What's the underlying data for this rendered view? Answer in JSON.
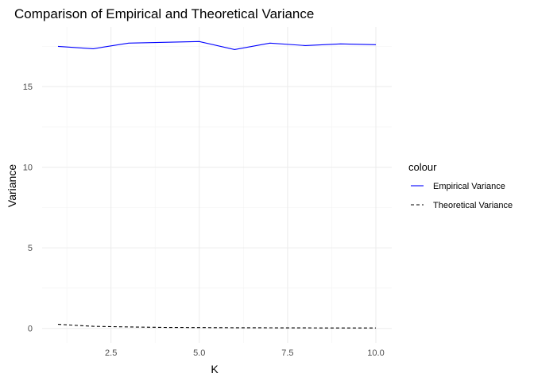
{
  "chart_data": {
    "type": "line",
    "title": "Comparison of Empirical and Theoretical Variance",
    "xlabel": "K",
    "ylabel": "Variance",
    "xlim": [
      0.55,
      10.45
    ],
    "ylim": [
      -0.9,
      18.7
    ],
    "x_ticks": [
      2.5,
      5.0,
      7.5,
      10.0
    ],
    "x_tick_labels": [
      "2.5",
      "5.0",
      "7.5",
      "10.0"
    ],
    "x_minor_ticks": [
      1.25,
      3.75,
      6.25,
      8.75
    ],
    "y_ticks": [
      0,
      5,
      10,
      15
    ],
    "y_tick_labels": [
      "0",
      "5",
      "10",
      "15"
    ],
    "y_minor_ticks": [
      2.5,
      7.5,
      12.5,
      17.5
    ],
    "grid": true,
    "x": [
      1,
      2,
      3,
      4,
      5,
      6,
      7,
      8,
      9,
      10
    ],
    "legend": {
      "title": "colour",
      "position": "right"
    },
    "series": [
      {
        "name": "Empirical Variance",
        "color": "#0000ff",
        "linestyle": "solid",
        "values": [
          17.5,
          17.35,
          17.7,
          17.75,
          17.8,
          17.3,
          17.7,
          17.55,
          17.65,
          17.6
        ]
      },
      {
        "name": "Theoretical Variance",
        "color": "#000000",
        "linestyle": "dashed",
        "values": [
          0.25,
          0.13,
          0.09,
          0.06,
          0.05,
          0.04,
          0.035,
          0.03,
          0.028,
          0.025
        ]
      }
    ]
  }
}
